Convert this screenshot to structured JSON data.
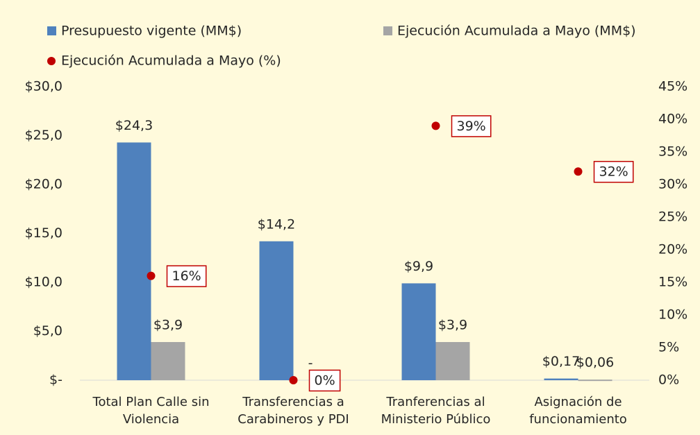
{
  "chart_data": {
    "type": "bar",
    "categories": [
      "Total Plan Calle sin Violencia",
      "Transferencias a Carabineros y PDI",
      "Tranferencias al Ministerio Público",
      "Asignación de funcionamiento"
    ],
    "series": [
      {
        "name": "Presupuesto vigente (MM$)",
        "color": "#4f81bd",
        "values": [
          24.3,
          14.2,
          9.9,
          0.17
        ],
        "value_labels": [
          "$24,3",
          "$14,2",
          "$9,9",
          "$0,17"
        ]
      },
      {
        "name": "Ejecución Acumulada a Mayo (MM$)",
        "color": "#a5a5a5",
        "values": [
          3.9,
          0,
          3.9,
          0.06
        ],
        "value_labels": [
          "$3,9",
          "-",
          "$3,9",
          "$0,06"
        ]
      },
      {
        "name": "Ejecución Acumulada a Mayo (%)",
        "color": "#c00000",
        "axis": "y2",
        "type": "scatter",
        "values": [
          16,
          0,
          39,
          32
        ],
        "value_labels": [
          "16%",
          "0%",
          "39%",
          "32%"
        ]
      }
    ],
    "ylim": [
      0,
      30
    ],
    "yticks": [
      {
        "value": 0,
        "label": "$-"
      },
      {
        "value": 5,
        "label": "$5,0"
      },
      {
        "value": 10,
        "label": "$10,0"
      },
      {
        "value": 15,
        "label": "$15,0"
      },
      {
        "value": 20,
        "label": "$20,0"
      },
      {
        "value": 25,
        "label": "$25,0"
      },
      {
        "value": 30,
        "label": "$30,0"
      }
    ],
    "y2lim": [
      0,
      45
    ],
    "y2ticks": [
      {
        "value": 0,
        "label": "0%"
      },
      {
        "value": 5,
        "label": "5%"
      },
      {
        "value": 10,
        "label": "10%"
      },
      {
        "value": 15,
        "label": "15%"
      },
      {
        "value": 20,
        "label": "20%"
      },
      {
        "value": 25,
        "label": "25%"
      },
      {
        "value": 30,
        "label": "30%"
      },
      {
        "value": 35,
        "label": "35%"
      },
      {
        "value": 40,
        "label": "40%"
      },
      {
        "value": 45,
        "label": "45%"
      }
    ]
  }
}
